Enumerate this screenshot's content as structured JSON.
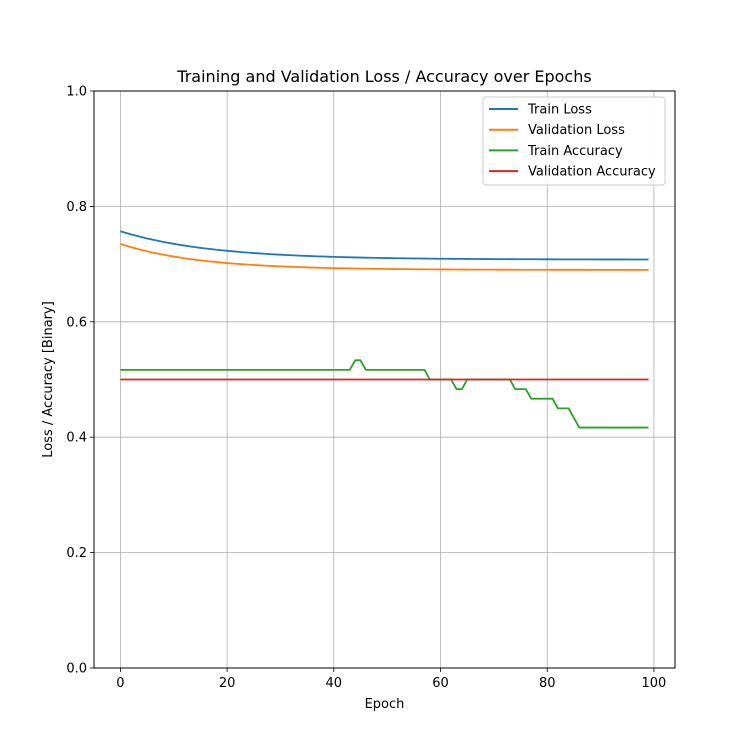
{
  "chart_data": {
    "type": "line",
    "title": "Training and Validation Loss / Accuracy over Epochs",
    "xlabel": "Epoch",
    "ylabel": "Loss / Accuracy [Binary]",
    "xlim": [
      -4.95,
      103.95
    ],
    "ylim": [
      0.0,
      1.0
    ],
    "xticks": [
      0,
      20,
      40,
      60,
      80,
      100
    ],
    "yticks": [
      0.0,
      0.2,
      0.4,
      0.6,
      0.8,
      1.0
    ],
    "xtick_labels": [
      "0",
      "20",
      "40",
      "60",
      "80",
      "100"
    ],
    "ytick_labels": [
      "0.0",
      "0.2",
      "0.4",
      "0.6",
      "0.8",
      "1.0"
    ],
    "grid": true,
    "legend_position": "top-right",
    "series": [
      {
        "name": "Train Loss",
        "color": "#1f77b4",
        "kind": "exp_decay",
        "x": [
          0,
          99
        ],
        "start": 0.757,
        "end": 0.708,
        "tau": 17
      },
      {
        "name": "Validation Loss",
        "color": "#ff7f0e",
        "kind": "exp_decay",
        "x": [
          0,
          99
        ],
        "start": 0.735,
        "end": 0.69,
        "tau": 15
      },
      {
        "name": "Train Accuracy",
        "color": "#2ca02c",
        "kind": "points",
        "x": [
          0,
          43,
          44,
          45,
          46,
          57,
          58,
          62,
          63,
          64,
          65,
          73,
          74,
          76,
          77,
          81,
          82,
          84,
          86,
          99
        ],
        "y": [
          0.5167,
          0.5167,
          0.5333,
          0.5333,
          0.5167,
          0.5167,
          0.5,
          0.5,
          0.4833,
          0.4833,
          0.5,
          0.5,
          0.4833,
          0.4833,
          0.4667,
          0.4667,
          0.45,
          0.45,
          0.4167,
          0.4167
        ]
      },
      {
        "name": "Validation Accuracy",
        "color": "#d62728",
        "kind": "points",
        "x": [
          0,
          99
        ],
        "y": [
          0.5,
          0.5
        ]
      }
    ]
  }
}
